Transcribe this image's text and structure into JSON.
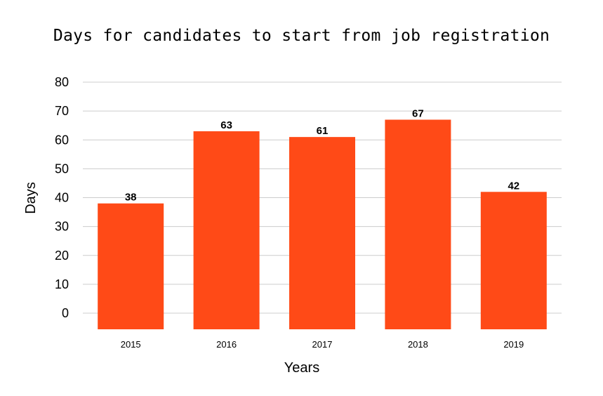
{
  "chart_data": {
    "type": "bar",
    "title": "Days for candidates to start from job registration",
    "xlabel": "Years",
    "ylabel": "Days",
    "categories": [
      "2015",
      "2016",
      "2017",
      "2018",
      "2019"
    ],
    "values": [
      38,
      63,
      61,
      67,
      42
    ],
    "ylim": [
      0,
      80
    ],
    "yticks": [
      0,
      10,
      20,
      30,
      40,
      50,
      60,
      70,
      80
    ],
    "grid": true,
    "bar_color": "#FF4A17",
    "data_labels": true
  }
}
